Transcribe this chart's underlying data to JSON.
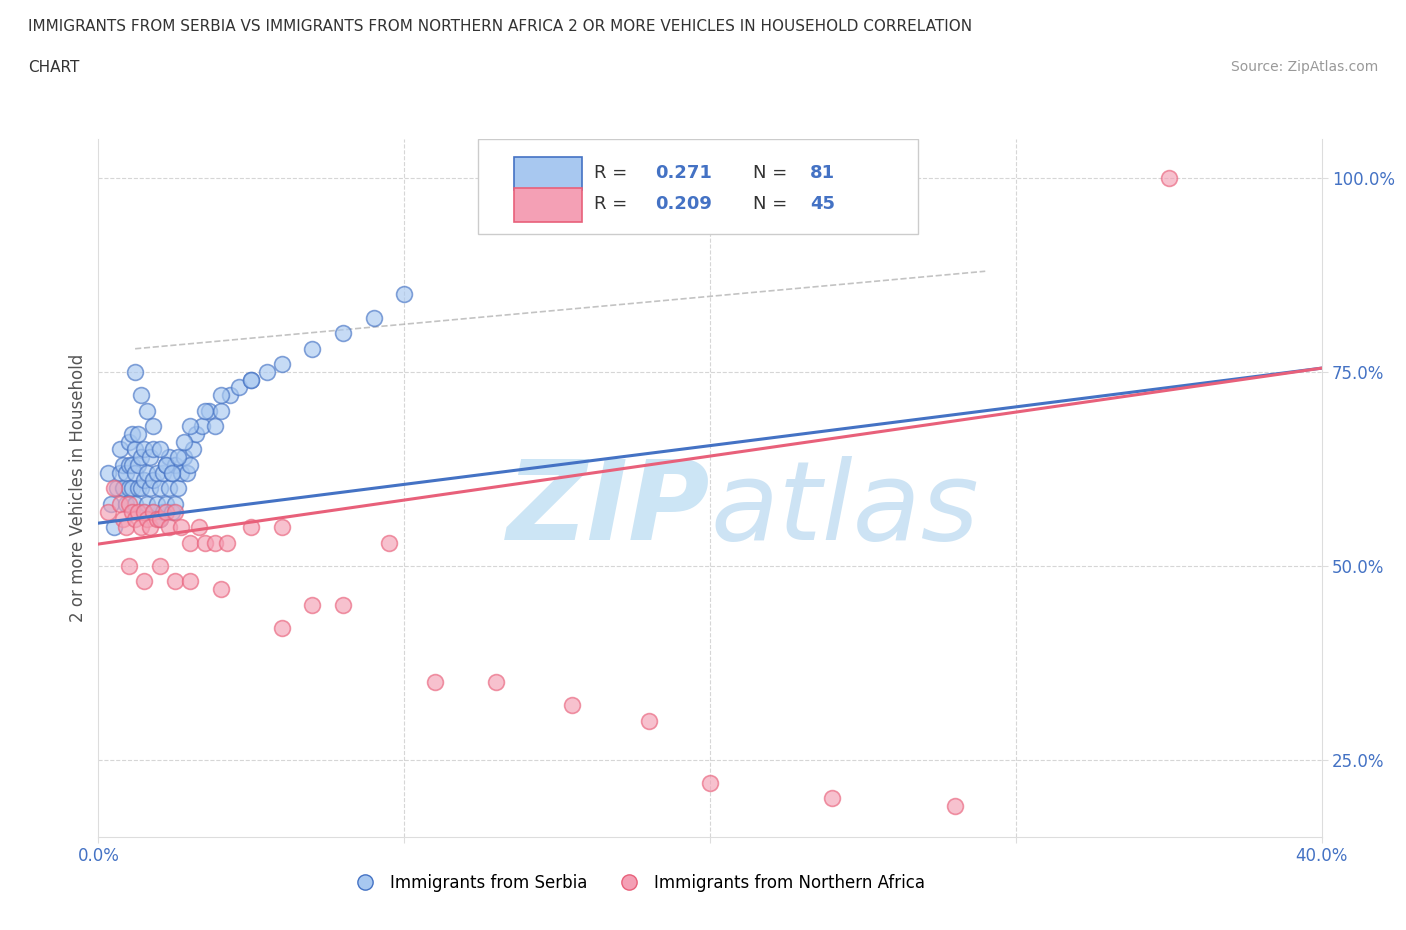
{
  "title_line1": "IMMIGRANTS FROM SERBIA VS IMMIGRANTS FROM NORTHERN AFRICA 2 OR MORE VEHICLES IN HOUSEHOLD CORRELATION",
  "title_line2": "CHART",
  "source_text": "Source: ZipAtlas.com",
  "ylabel": "2 or more Vehicles in Household",
  "serbia_color": "#a8c8f0",
  "serbia_line_color": "#4472c4",
  "nafrica_color": "#f4a0b5",
  "nafrica_line_color": "#e8607a",
  "xlim": [
    0.0,
    0.4
  ],
  "ylim": [
    0.15,
    1.05
  ],
  "y_ticks_right": [
    0.25,
    0.5,
    0.75,
    1.0
  ],
  "y_tick_labels_right": [
    "25.0%",
    "50.0%",
    "75.0%",
    "100.0%"
  ],
  "serbia_scatter_x": [
    0.003,
    0.004,
    0.005,
    0.006,
    0.007,
    0.007,
    0.008,
    0.008,
    0.009,
    0.009,
    0.01,
    0.01,
    0.01,
    0.011,
    0.011,
    0.011,
    0.012,
    0.012,
    0.012,
    0.013,
    0.013,
    0.013,
    0.014,
    0.014,
    0.015,
    0.015,
    0.015,
    0.016,
    0.016,
    0.017,
    0.017,
    0.018,
    0.018,
    0.018,
    0.019,
    0.019,
    0.02,
    0.02,
    0.021,
    0.021,
    0.022,
    0.022,
    0.023,
    0.023,
    0.024,
    0.024,
    0.025,
    0.025,
    0.026,
    0.027,
    0.028,
    0.029,
    0.03,
    0.031,
    0.032,
    0.034,
    0.036,
    0.038,
    0.04,
    0.043,
    0.046,
    0.05,
    0.055,
    0.06,
    0.07,
    0.08,
    0.09,
    0.1,
    0.012,
    0.014,
    0.016,
    0.018,
    0.02,
    0.022,
    0.024,
    0.026,
    0.028,
    0.03,
    0.035,
    0.04,
    0.05
  ],
  "serbia_scatter_y": [
    0.62,
    0.58,
    0.55,
    0.6,
    0.62,
    0.65,
    0.6,
    0.63,
    0.58,
    0.62,
    0.6,
    0.63,
    0.66,
    0.6,
    0.63,
    0.67,
    0.58,
    0.62,
    0.65,
    0.6,
    0.63,
    0.67,
    0.6,
    0.64,
    0.57,
    0.61,
    0.65,
    0.58,
    0.62,
    0.6,
    0.64,
    0.57,
    0.61,
    0.65,
    0.58,
    0.62,
    0.56,
    0.6,
    0.57,
    0.62,
    0.58,
    0.63,
    0.6,
    0.64,
    0.57,
    0.62,
    0.58,
    0.63,
    0.6,
    0.62,
    0.64,
    0.62,
    0.63,
    0.65,
    0.67,
    0.68,
    0.7,
    0.68,
    0.7,
    0.72,
    0.73,
    0.74,
    0.75,
    0.76,
    0.78,
    0.8,
    0.82,
    0.85,
    0.75,
    0.72,
    0.7,
    0.68,
    0.65,
    0.63,
    0.62,
    0.64,
    0.66,
    0.68,
    0.7,
    0.72,
    0.74
  ],
  "nafrica_scatter_x": [
    0.003,
    0.005,
    0.007,
    0.008,
    0.009,
    0.01,
    0.011,
    0.012,
    0.013,
    0.014,
    0.015,
    0.016,
    0.017,
    0.018,
    0.019,
    0.02,
    0.022,
    0.023,
    0.025,
    0.027,
    0.03,
    0.033,
    0.035,
    0.038,
    0.042,
    0.05,
    0.06,
    0.07,
    0.08,
    0.095,
    0.11,
    0.13,
    0.155,
    0.18,
    0.2,
    0.24,
    0.28,
    0.35,
    0.01,
    0.015,
    0.02,
    0.025,
    0.03,
    0.04,
    0.06
  ],
  "nafrica_scatter_y": [
    0.57,
    0.6,
    0.58,
    0.56,
    0.55,
    0.58,
    0.57,
    0.56,
    0.57,
    0.55,
    0.57,
    0.56,
    0.55,
    0.57,
    0.56,
    0.56,
    0.57,
    0.55,
    0.57,
    0.55,
    0.53,
    0.55,
    0.53,
    0.53,
    0.53,
    0.55,
    0.55,
    0.45,
    0.45,
    0.53,
    0.35,
    0.35,
    0.32,
    0.3,
    0.22,
    0.2,
    0.19,
    1.0,
    0.5,
    0.48,
    0.5,
    0.48,
    0.48,
    0.47,
    0.42
  ],
  "background_color": "#ffffff",
  "watermark_color": "#cce5f5",
  "serbia_trend_x": [
    0.0,
    0.4
  ],
  "serbia_trend_y": [
    0.555,
    0.755
  ],
  "nafrica_trend_x": [
    0.0,
    0.4
  ],
  "nafrica_trend_y": [
    0.528,
    0.755
  ],
  "dashed_line_x": [
    0.012,
    0.29
  ],
  "dashed_line_y": [
    0.78,
    0.88
  ]
}
